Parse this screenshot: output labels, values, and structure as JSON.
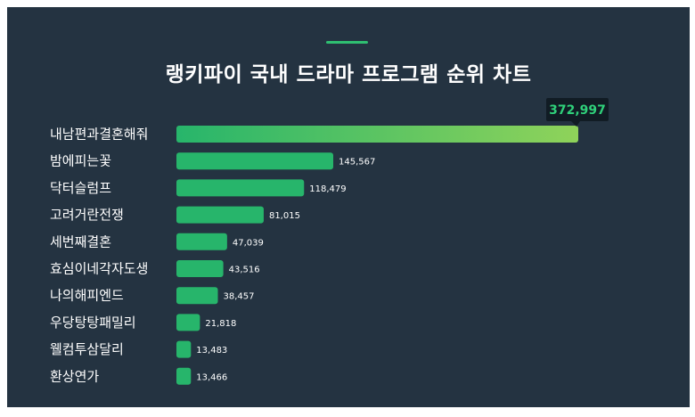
{
  "chart_data": {
    "type": "bar",
    "orientation": "horizontal",
    "title": "랭키파이 국내 드라마 프로그램 순위 차트",
    "categories": [
      "내남편과결혼해줘",
      "밤에피는꽃",
      "닥터슬럼프",
      "고려거란전쟁",
      "세번째결혼",
      "효심이네각자도생",
      "나의해피엔드",
      "우당탕탕패밀리",
      "웰컴투삼달리",
      "환상연가"
    ],
    "values": [
      372997,
      145567,
      118479,
      81015,
      47039,
      43516,
      38457,
      21818,
      13483,
      13466
    ],
    "value_labels": [
      "372,997",
      "145,567",
      "118,479",
      "81,015",
      "47,039",
      "43,516",
      "38,457",
      "21,818",
      "13,483",
      "13,466"
    ],
    "highlight": "top value shown in callout box",
    "colors": {
      "bar": "#27b56b",
      "bar_top_gradient_end": "#8fd35a",
      "background": "#243341",
      "callout_bg": "#111c24",
      "callout_text": "#2fd07a"
    },
    "grid": false,
    "legend": "none"
  }
}
